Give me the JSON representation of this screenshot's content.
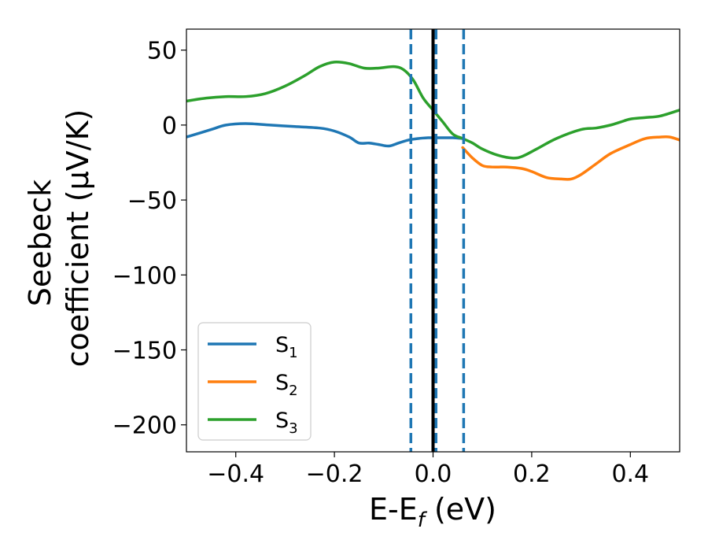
{
  "chart_data": {
    "type": "line",
    "title": "",
    "xlabel": {
      "main": "E-E",
      "sub": "f",
      "suffix": " (eV)"
    },
    "ylabel": {
      "line1": "Seebeck",
      "line2": "coefficient  (μV/K)"
    },
    "xlim": [
      -0.5,
      0.5
    ],
    "ylim": [
      -218,
      64
    ],
    "xticks": [
      -0.4,
      -0.2,
      0.0,
      0.2,
      0.4
    ],
    "xtick_labels": [
      "−0.4",
      "−0.2",
      "0.0",
      "0.2",
      "0.4"
    ],
    "yticks": [
      50,
      0,
      -50,
      -100,
      -150,
      -200
    ],
    "ytick_labels": [
      "50",
      "0",
      "−50",
      "−100",
      "−150",
      "−200"
    ],
    "grid": false,
    "legend_position": "lower-left",
    "vlines": [
      {
        "x": -0.045,
        "style": "dashed",
        "color": "#1f77b4"
      },
      {
        "x": 0.0,
        "style": "solid",
        "color": "#000000"
      },
      {
        "x": 0.006,
        "style": "dashed",
        "color": "#1f77b4"
      },
      {
        "x": 0.062,
        "style": "dashed",
        "color": "#1f77b4"
      }
    ],
    "series": [
      {
        "name": "S",
        "sub": "1",
        "color": "#1f77b4",
        "x": [
          -0.5,
          -0.45,
          -0.42,
          -0.38,
          -0.33,
          -0.28,
          -0.23,
          -0.2,
          -0.17,
          -0.15,
          -0.13,
          -0.11,
          -0.09,
          -0.07,
          -0.05,
          -0.03,
          -0.01,
          0.0,
          0.02,
          0.04,
          0.06
        ],
        "y": [
          -8,
          -3,
          0,
          1,
          0,
          -1,
          -2,
          -4,
          -8,
          -12,
          -12,
          -13,
          -14,
          -12,
          -10,
          -9,
          -8.5,
          -8.5,
          -8.5,
          -8.5,
          -9
        ]
      },
      {
        "name": "S",
        "sub": "2",
        "color": "#ff7f0e",
        "x": [
          0.06,
          0.08,
          0.1,
          0.12,
          0.15,
          0.18,
          0.2,
          0.23,
          0.26,
          0.28,
          0.3,
          0.33,
          0.36,
          0.4,
          0.43,
          0.46,
          0.48,
          0.5
        ],
        "y": [
          -15,
          -22,
          -27,
          -28,
          -28,
          -29,
          -31,
          -35,
          -36,
          -36,
          -33,
          -26,
          -19,
          -13,
          -9,
          -8,
          -8,
          -10
        ]
      },
      {
        "name": "S",
        "sub": "3",
        "color": "#2ca02c",
        "x": [
          -0.5,
          -0.46,
          -0.42,
          -0.38,
          -0.34,
          -0.3,
          -0.26,
          -0.23,
          -0.2,
          -0.17,
          -0.14,
          -0.11,
          -0.08,
          -0.06,
          -0.04,
          -0.02,
          0.0,
          0.02,
          0.04,
          0.06,
          0.08,
          0.1,
          0.13,
          0.16,
          0.18,
          0.21,
          0.25,
          0.3,
          0.33,
          0.36,
          0.38,
          0.4,
          0.43,
          0.46,
          0.5
        ],
        "y": [
          16,
          18,
          19,
          19,
          21,
          26,
          33,
          39,
          42,
          41,
          38,
          38,
          39,
          37,
          30,
          18,
          10,
          2,
          -6,
          -9,
          -12,
          -16,
          -20,
          -22,
          -21,
          -16,
          -9,
          -3,
          -2,
          0,
          2,
          4,
          5,
          6,
          10
        ]
      }
    ]
  }
}
